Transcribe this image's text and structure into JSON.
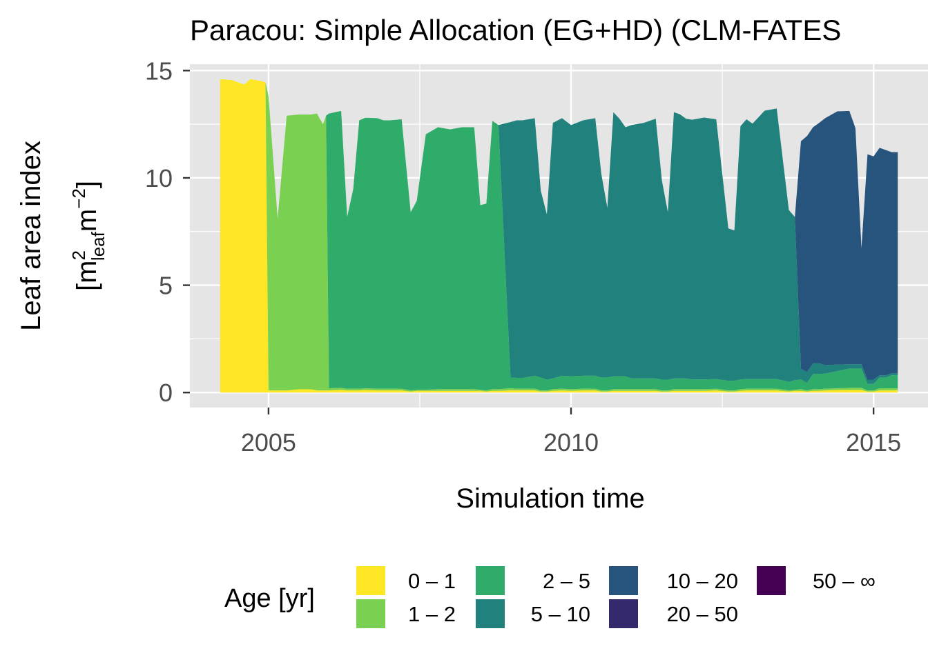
{
  "chart_data": {
    "type": "area",
    "stacked": true,
    "title": "Paracou: Simple Allocation (EG+HD) (CLM-FATES",
    "xlabel": "Simulation time",
    "ylabel_line1": "Leaf area index",
    "ylabel_line2": {
      "open": "[m",
      "sup1": "2",
      "sub": "leaf",
      "mid": "m",
      "sup2": "−2",
      "close": "]"
    },
    "xlim": [
      2003.7,
      2015.9
    ],
    "ylim": [
      -0.7,
      15.3
    ],
    "x_ticks": [
      2005,
      2010,
      2015
    ],
    "x_tick_labels": [
      "2005",
      "2010",
      "2015"
    ],
    "y_ticks": [
      0,
      5,
      10,
      15
    ],
    "y_tick_labels": [
      "0",
      "5",
      "10",
      "15"
    ],
    "grid": true,
    "panel_background": "#e5e5e5",
    "legend": {
      "title": "Age [yr]",
      "position": "bottom",
      "entries": [
        {
          "label": "0 – 1",
          "color": "#fde725"
        },
        {
          "label": "1 – 2",
          "color": "#7ad151"
        },
        {
          "label": "2 – 5",
          "color": "#2fac6a"
        },
        {
          "label": "5 – 10",
          "color": "#21817c"
        },
        {
          "label": "10 – 20",
          "color": "#27547d"
        },
        {
          "label": "20 – 50",
          "color": "#35296e"
        },
        {
          "label": "50 – ∞",
          "color": "#440154"
        }
      ]
    },
    "x": [
      2004.2,
      2004.4,
      2004.6,
      2004.7,
      2004.9,
      2004.95,
      2005.0,
      2005.15,
      2005.3,
      2005.5,
      2005.7,
      2005.8,
      2005.9,
      2005.95,
      2006.0,
      2006.2,
      2006.3,
      2006.4,
      2006.5,
      2006.6,
      2006.8,
      2006.9,
      2007.0,
      2007.2,
      2007.35,
      2007.45,
      2007.6,
      2007.8,
      2008.0,
      2008.2,
      2008.4,
      2008.5,
      2008.6,
      2008.7,
      2008.8,
      2009.0,
      2009.1,
      2009.2,
      2009.4,
      2009.5,
      2009.6,
      2009.7,
      2009.85,
      2010.0,
      2010.2,
      2010.4,
      2010.5,
      2010.6,
      2010.7,
      2010.8,
      2010.9,
      2011.0,
      2011.2,
      2011.4,
      2011.5,
      2011.6,
      2011.7,
      2011.8,
      2011.9,
      2012.0,
      2012.2,
      2012.4,
      2012.6,
      2012.7,
      2012.8,
      2012.9,
      2013.0,
      2013.2,
      2013.4,
      2013.6,
      2013.7,
      2013.8,
      2013.9,
      2014.0,
      2014.1,
      2014.2,
      2014.4,
      2014.6,
      2014.7,
      2014.8,
      2014.9,
      2015.0,
      2015.1,
      2015.2,
      2015.3,
      2015.4
    ],
    "series": [
      {
        "name": "0 – 1",
        "values": [
          14.6,
          14.55,
          14.35,
          14.6,
          14.5,
          14.45,
          0.1,
          0.1,
          0.1,
          0.15,
          0.15,
          0.1,
          0.1,
          0.1,
          0.1,
          0.12,
          0.1,
          0.1,
          0.1,
          0.12,
          0.1,
          0.1,
          0.1,
          0.1,
          0.05,
          0.08,
          0.08,
          0.08,
          0.08,
          0.08,
          0.08,
          0.08,
          0.05,
          0.08,
          0.08,
          0.1,
          0.1,
          0.1,
          0.1,
          0.05,
          0.05,
          0.08,
          0.1,
          0.08,
          0.1,
          0.1,
          0.05,
          0.05,
          0.08,
          0.08,
          0.08,
          0.08,
          0.08,
          0.08,
          0.05,
          0.05,
          0.08,
          0.08,
          0.08,
          0.08,
          0.08,
          0.1,
          0.05,
          0.05,
          0.08,
          0.1,
          0.1,
          0.1,
          0.1,
          0.05,
          0.08,
          0.08,
          0.05,
          0.08,
          0.08,
          0.1,
          0.12,
          0.12,
          0.12,
          0.12,
          0.05,
          0.05,
          0.1,
          0.1,
          0.1,
          0.1
        ]
      },
      {
        "name": "1 – 2",
        "values": [
          0,
          0,
          0,
          0,
          0,
          0,
          13.7,
          8.0,
          12.8,
          12.8,
          12.8,
          12.9,
          12.4,
          12.8,
          0.1,
          0.1,
          0.08,
          0.08,
          0.08,
          0.08,
          0.08,
          0.08,
          0.08,
          0.08,
          0.05,
          0.05,
          0.05,
          0.08,
          0.08,
          0.08,
          0.08,
          0.05,
          0.05,
          0.08,
          0.08,
          0.1,
          0.08,
          0.08,
          0.08,
          0.05,
          0.05,
          0.08,
          0.08,
          0.08,
          0.08,
          0.08,
          0.05,
          0.05,
          0.08,
          0.08,
          0.08,
          0.08,
          0.08,
          0.08,
          0.05,
          0.05,
          0.08,
          0.08,
          0.08,
          0.08,
          0.08,
          0.08,
          0.05,
          0.05,
          0.08,
          0.08,
          0.08,
          0.08,
          0.08,
          0.05,
          0.05,
          0.08,
          0.05,
          0.08,
          0.08,
          0.08,
          0.08,
          0.1,
          0.1,
          0.1,
          0.05,
          0.05,
          0.1,
          0.1,
          0.1,
          0.1
        ]
      },
      {
        "name": "2 – 5",
        "values": [
          0,
          0,
          0,
          0,
          0,
          0,
          0,
          0,
          0,
          0,
          0,
          0,
          0,
          0,
          12.8,
          12.9,
          8.0,
          9.3,
          12.5,
          12.6,
          12.6,
          12.5,
          12.5,
          12.55,
          8.3,
          8.8,
          11.9,
          12.2,
          12.1,
          12.2,
          12.2,
          8.6,
          8.7,
          12.5,
          12.3,
          0.5,
          0.5,
          0.5,
          0.6,
          0.6,
          0.5,
          0.5,
          0.6,
          0.6,
          0.6,
          0.6,
          0.6,
          0.6,
          0.6,
          0.6,
          0.6,
          0.5,
          0.5,
          0.5,
          0.5,
          0.5,
          0.5,
          0.5,
          0.5,
          0.45,
          0.45,
          0.45,
          0.45,
          0.45,
          0.45,
          0.45,
          0.45,
          0.45,
          0.45,
          0.4,
          0.45,
          0.45,
          0.35,
          0.7,
          0.7,
          0.7,
          0.8,
          0.9,
          0.9,
          0.9,
          0.3,
          0.3,
          0.5,
          0.5,
          0.6,
          0.6
        ]
      },
      {
        "name": "5 – 10",
        "values": [
          0,
          0,
          0,
          0,
          0,
          0,
          0,
          0,
          0,
          0,
          0,
          0,
          0,
          0,
          0,
          0,
          0,
          0,
          0,
          0,
          0,
          0,
          0,
          0,
          0,
          0,
          0,
          0,
          0,
          0,
          0,
          0,
          0,
          0,
          0,
          11.9,
          12.0,
          12.0,
          12.0,
          8.7,
          7.7,
          11.9,
          12.0,
          11.7,
          11.9,
          12.0,
          9.5,
          7.9,
          12.3,
          12.0,
          11.6,
          11.8,
          11.9,
          12.1,
          9.3,
          7.8,
          12.4,
          12.3,
          12.1,
          12.1,
          12.2,
          12.1,
          7.1,
          7.0,
          11.8,
          12.1,
          11.9,
          12.5,
          12.6,
          8.0,
          7.6,
          0.5,
          0.5,
          0.5,
          0.5,
          0.4,
          0.3,
          0.2,
          0.2,
          0.2,
          0.2,
          0.2,
          0.1,
          0.1,
          0.1,
          0.1
        ]
      },
      {
        "name": "10 – 20",
        "values": [
          0,
          0,
          0,
          0,
          0,
          0,
          0,
          0,
          0,
          0,
          0,
          0,
          0,
          0,
          0,
          0,
          0,
          0,
          0,
          0,
          0,
          0,
          0,
          0,
          0,
          0,
          0,
          0,
          0,
          0,
          0,
          0,
          0,
          0,
          0,
          0,
          0,
          0,
          0,
          0,
          0,
          0,
          0,
          0,
          0,
          0,
          0,
          0,
          0,
          0,
          0,
          0,
          0,
          0,
          0,
          0,
          0,
          0,
          0,
          0,
          0,
          0,
          0,
          0,
          0,
          0,
          0,
          0,
          0,
          0,
          0,
          10.6,
          11.0,
          11.0,
          11.2,
          11.5,
          11.8,
          11.8,
          11.0,
          5.4,
          10.5,
          10.4,
          10.6,
          10.5,
          10.3,
          10.3
        ]
      }
    ]
  }
}
